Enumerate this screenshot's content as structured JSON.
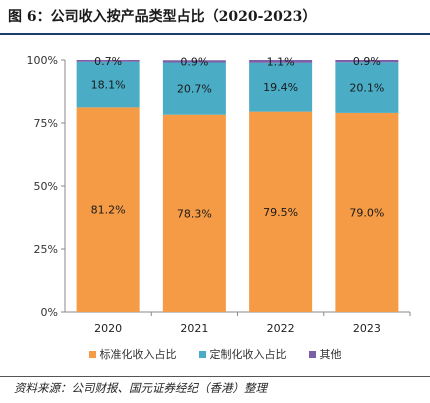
{
  "header": {
    "title": "图 6：公司收入按产品类型占比（2020-2023）"
  },
  "footer": {
    "source": "资料来源：公司财报、国元证券经纪（香港）整理"
  },
  "chart_data": {
    "type": "bar",
    "stacked": true,
    "percent": true,
    "categories": [
      "2020",
      "2021",
      "2022",
      "2023"
    ],
    "series": [
      {
        "name": "标准化收入占比",
        "values": [
          81.2,
          78.3,
          79.5,
          79.0
        ],
        "labels": [
          "81.2%",
          "78.3%",
          "79.5%",
          "79.0%"
        ],
        "color": "#f59b45"
      },
      {
        "name": "定制化收入占比",
        "values": [
          18.1,
          20.7,
          19.4,
          20.1
        ],
        "labels": [
          "18.1%",
          "20.7%",
          "19.4%",
          "20.1%"
        ],
        "color": "#4bacc6"
      },
      {
        "name": "其他",
        "values": [
          0.7,
          0.9,
          1.1,
          0.9
        ],
        "labels": [
          "0.7%",
          "0.9%",
          "1.1%",
          "0.9%"
        ],
        "color": "#7c5fa6"
      }
    ],
    "y_ticks": [
      "0%",
      "25%",
      "50%",
      "75%",
      "100%"
    ],
    "ylim": [
      0,
      100
    ],
    "grid": false,
    "legend_position": "bottom"
  }
}
